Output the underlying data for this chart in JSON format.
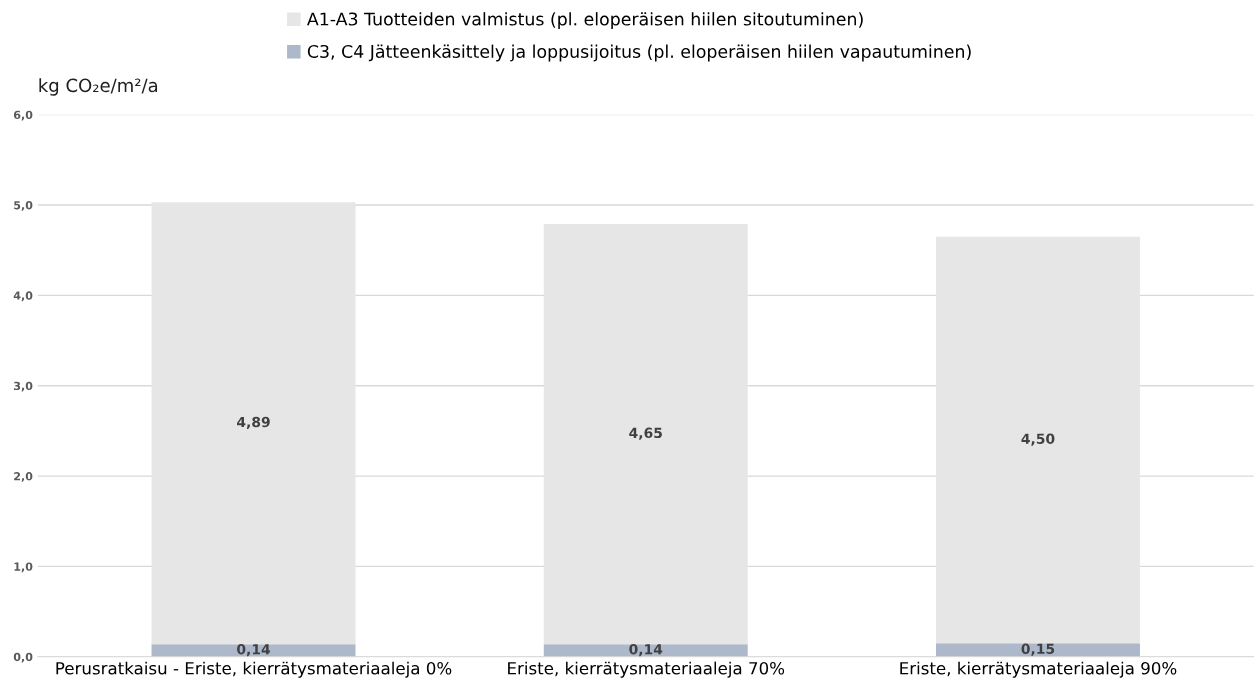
{
  "chart_data": {
    "type": "bar",
    "stacked": true,
    "ylabel": "kg CO₂e/m²/a",
    "categories": [
      "Perusratkaisu - Eriste, kierrätysmateriaaleja 0%",
      "Eriste, kierrätysmateriaaleja 70%",
      "Eriste, kierrätysmateriaaleja 90%"
    ],
    "series": [
      {
        "name": "C3, C4 Jätteenkäsittely ja loppusijoitus (pl. eloperäisen hiilen vapautuminen)",
        "color": "#adb9ca",
        "values": [
          0.14,
          0.14,
          0.15
        ],
        "value_labels": [
          "0,14",
          "0,14",
          "0,15"
        ]
      },
      {
        "name": "A1-A3 Tuotteiden valmistus (pl. eloperäisen hiilen sitoutuminen)",
        "color": "#e6e6e6",
        "values": [
          4.89,
          4.65,
          4.5
        ],
        "value_labels": [
          "4,89",
          "4,65",
          "4,50"
        ]
      }
    ],
    "ylim": [
      0,
      6
    ],
    "yticks": [
      {
        "value": 0,
        "label": "0,0"
      },
      {
        "value": 1,
        "label": "1,0"
      },
      {
        "value": 2,
        "label": "2,0"
      },
      {
        "value": 3,
        "label": "3,0"
      },
      {
        "value": 4,
        "label": "4,0"
      },
      {
        "value": 5,
        "label": "5,0"
      },
      {
        "value": 6,
        "label": "6,0"
      }
    ],
    "grid": "y",
    "legend": "top"
  }
}
